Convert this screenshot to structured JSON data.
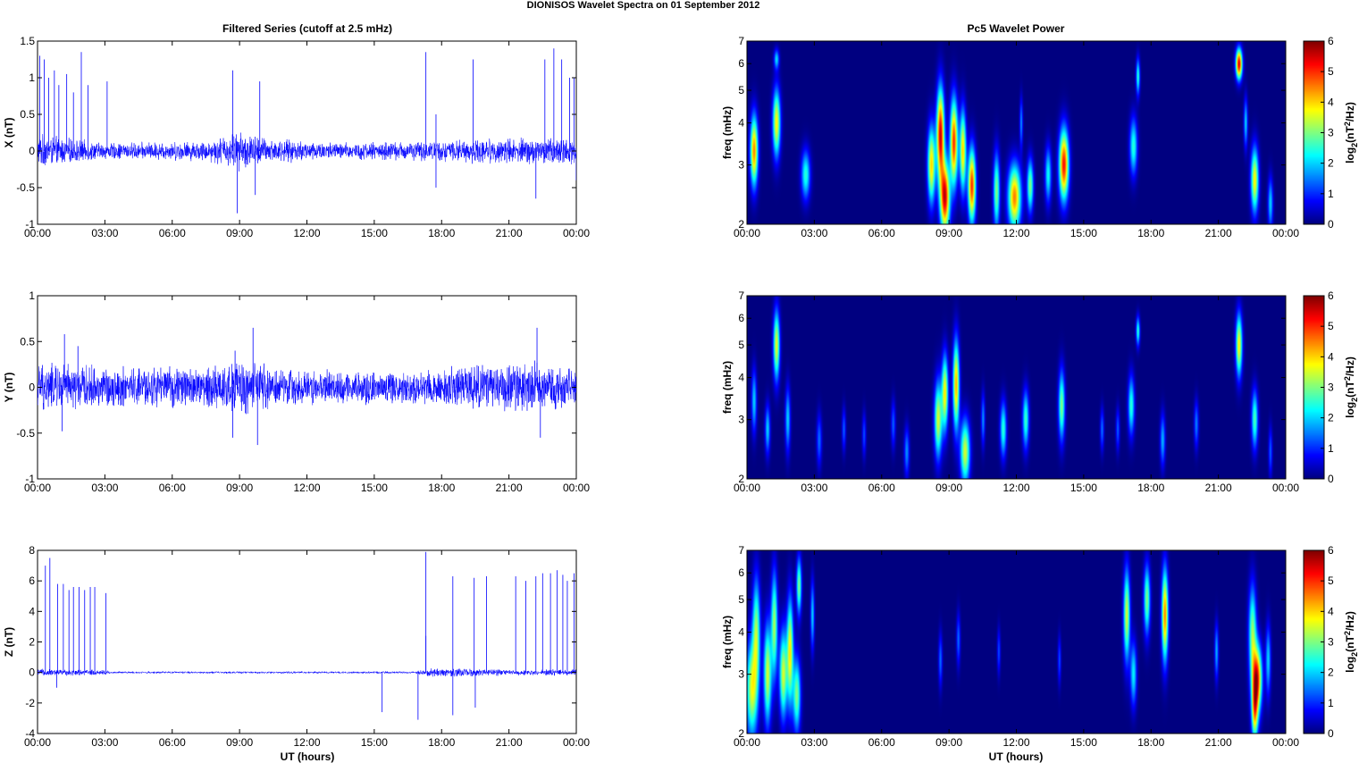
{
  "figure_title": "DIONISOS Wavelet Spectra on 01 September 2012",
  "left_title": "Filtered Series (cutoff at 2.5 mHz)",
  "right_title": "Pc5 Wavelet Power",
  "x_axis_label": "UT (hours)",
  "time_ticks": [
    "00:00",
    "03:00",
    "06:00",
    "09:00",
    "12:00",
    "15:00",
    "18:00",
    "21:00",
    "00:00"
  ],
  "colors": {
    "trace": "#0000ff",
    "background": "#ffffff",
    "axes": "#000000"
  },
  "colorbar": {
    "label_prefix": "log",
    "label_sub": "2",
    "label_mid": "(nT",
    "label_sup": "2",
    "label_end": "/Hz)",
    "ticks": [
      "0",
      "1",
      "2",
      "3",
      "4",
      "5",
      "6"
    ],
    "colormap": "jet",
    "range": [
      0,
      6
    ]
  },
  "chart_data": [
    {
      "type": "line",
      "panel": "X",
      "ylabel": "X (nT)",
      "ylim": [
        -1,
        1.5
      ],
      "yticks": [
        "1.5",
        "1",
        "0.5",
        "0",
        "-0.5",
        "-1"
      ],
      "xlim": [
        "00:00",
        "24:00"
      ],
      "noise_envelope": [
        [
          0,
          0.25
        ],
        [
          3,
          0.12
        ],
        [
          7.5,
          0.15
        ],
        [
          9.0,
          0.3
        ],
        [
          10.5,
          0.18
        ],
        [
          13.5,
          0.13
        ],
        [
          17.5,
          0.15
        ],
        [
          21,
          0.2
        ],
        [
          24,
          0.2
        ]
      ],
      "spikes": [
        [
          0.1,
          1.3
        ],
        [
          0.3,
          1.25
        ],
        [
          0.5,
          1.0
        ],
        [
          0.75,
          1.1
        ],
        [
          0.95,
          0.9
        ],
        [
          1.3,
          1.05
        ],
        [
          1.6,
          0.8
        ],
        [
          1.95,
          1.35
        ],
        [
          2.25,
          0.9
        ],
        [
          3.1,
          0.95
        ],
        [
          8.7,
          1.1
        ],
        [
          9.9,
          0.95
        ],
        [
          17.3,
          1.35
        ],
        [
          17.75,
          0.5
        ],
        [
          19.4,
          1.25
        ],
        [
          22.6,
          1.25
        ],
        [
          23.0,
          1.4
        ],
        [
          23.35,
          1.25
        ],
        [
          23.7,
          1.0
        ],
        [
          23.9,
          1.0
        ]
      ],
      "dips": [
        [
          8.9,
          -0.85
        ],
        [
          9.7,
          -0.6
        ],
        [
          17.75,
          -0.5
        ],
        [
          22.2,
          -0.65
        ],
        [
          24.0,
          -0.4
        ]
      ]
    },
    {
      "type": "line",
      "panel": "Y",
      "ylabel": "Y (nT)",
      "ylim": [
        -1,
        1
      ],
      "yticks": [
        "1",
        "0.5",
        "0",
        "-0.5",
        "-1"
      ],
      "xlim": [
        "00:00",
        "24:00"
      ],
      "noise_envelope": [
        [
          0,
          0.3
        ],
        [
          3,
          0.25
        ],
        [
          7.5,
          0.25
        ],
        [
          9.2,
          0.35
        ],
        [
          11,
          0.22
        ],
        [
          16.5,
          0.2
        ],
        [
          19,
          0.28
        ],
        [
          22.3,
          0.3
        ],
        [
          24,
          0.2
        ]
      ],
      "spikes": [
        [
          1.2,
          0.58
        ],
        [
          9.6,
          0.65
        ],
        [
          22.25,
          0.65
        ],
        [
          1.8,
          0.45
        ],
        [
          8.8,
          0.4
        ]
      ],
      "dips": [
        [
          9.8,
          -0.63
        ],
        [
          8.7,
          -0.55
        ],
        [
          22.4,
          -0.55
        ],
        [
          1.1,
          -0.48
        ]
      ]
    },
    {
      "type": "line",
      "panel": "Z",
      "ylabel": "Z (nT)",
      "ylim": [
        -4,
        8
      ],
      "yticks": [
        "8",
        "6",
        "4",
        "2",
        "0",
        "-2",
        "-4"
      ],
      "xlim": [
        "00:00",
        "24:00"
      ],
      "noise_envelope": [
        [
          0,
          0.25
        ],
        [
          3,
          0.2
        ],
        [
          3.3,
          0.08
        ],
        [
          16.8,
          0.08
        ],
        [
          17.5,
          0.3
        ],
        [
          19.5,
          0.3
        ],
        [
          21,
          0.2
        ],
        [
          24,
          0.25
        ]
      ],
      "spikes": [
        [
          0.35,
          7.0
        ],
        [
          0.55,
          7.5
        ],
        [
          0.9,
          5.8
        ],
        [
          1.15,
          5.8
        ],
        [
          1.4,
          5.4
        ],
        [
          1.6,
          5.6
        ],
        [
          1.85,
          5.6
        ],
        [
          2.1,
          5.4
        ],
        [
          2.35,
          5.6
        ],
        [
          2.55,
          5.6
        ],
        [
          3.05,
          5.2
        ],
        [
          17.3,
          7.9
        ],
        [
          17.3,
          2.4
        ],
        [
          18.5,
          6.3
        ],
        [
          19.45,
          6.2
        ],
        [
          20.0,
          6.3
        ],
        [
          21.3,
          6.3
        ],
        [
          21.75,
          6.0
        ],
        [
          22.2,
          6.3
        ],
        [
          22.5,
          6.5
        ],
        [
          22.85,
          6.5
        ],
        [
          23.15,
          6.7
        ],
        [
          23.4,
          6.4
        ],
        [
          23.6,
          6.0
        ],
        [
          23.9,
          6.5
        ]
      ],
      "dips": [
        [
          15.35,
          -2.6
        ],
        [
          16.95,
          -3.1
        ],
        [
          18.5,
          -2.8
        ],
        [
          19.5,
          -2.3
        ],
        [
          0.85,
          -1.0
        ]
      ]
    },
    {
      "type": "heatmap",
      "panel": "X",
      "ylabel": "freq (mHz)",
      "yscale": "log",
      "ylim": [
        2,
        7
      ],
      "yticks": [
        "7",
        "6",
        "5",
        "4",
        "3",
        "2"
      ],
      "xlim": [
        "00:00",
        "24:00"
      ],
      "clim": [
        0,
        6
      ],
      "blobs": [
        [
          0.3,
          3.3,
          0.12,
          0.6,
          4.5
        ],
        [
          1.3,
          4.0,
          0.12,
          0.7,
          3.8
        ],
        [
          1.3,
          6.2,
          0.08,
          0.3,
          2.0
        ],
        [
          2.6,
          2.8,
          0.14,
          0.35,
          2.5
        ],
        [
          8.2,
          3.0,
          0.12,
          0.6,
          4.0
        ],
        [
          8.6,
          3.7,
          0.12,
          0.9,
          5.5
        ],
        [
          8.8,
          2.4,
          0.15,
          0.45,
          5.5
        ],
        [
          9.2,
          3.5,
          0.12,
          0.8,
          5.0
        ],
        [
          9.6,
          3.3,
          0.1,
          0.7,
          4.0
        ],
        [
          10.0,
          2.6,
          0.12,
          0.5,
          5.0
        ],
        [
          11.1,
          2.5,
          0.1,
          0.5,
          3.0
        ],
        [
          11.9,
          2.4,
          0.2,
          0.4,
          4.5
        ],
        [
          12.6,
          2.6,
          0.1,
          0.35,
          3.0
        ],
        [
          12.2,
          4.0,
          0.05,
          0.5,
          1.6
        ],
        [
          14.1,
          3.0,
          0.15,
          0.55,
          5.2
        ],
        [
          13.4,
          2.8,
          0.1,
          0.4,
          2.3
        ],
        [
          17.2,
          3.4,
          0.12,
          0.5,
          2.5
        ],
        [
          17.4,
          5.5,
          0.06,
          0.5,
          2.5
        ],
        [
          21.9,
          6.0,
          0.1,
          0.45,
          5.5
        ],
        [
          22.2,
          4.0,
          0.06,
          0.5,
          2.0
        ],
        [
          22.6,
          2.7,
          0.12,
          0.45,
          3.8
        ],
        [
          23.3,
          2.3,
          0.08,
          0.3,
          2.0
        ]
      ]
    },
    {
      "type": "heatmap",
      "panel": "Y",
      "ylabel": "freq (mHz)",
      "yscale": "log",
      "ylim": [
        2,
        7
      ],
      "yticks": [
        "7",
        "6",
        "5",
        "4",
        "3",
        "2"
      ],
      "xlim": [
        "00:00",
        "24:00"
      ],
      "clim": [
        0,
        6
      ],
      "blobs": [
        [
          0.3,
          3.4,
          0.08,
          0.55,
          2.0
        ],
        [
          0.9,
          2.8,
          0.08,
          0.35,
          2.0
        ],
        [
          1.3,
          5.0,
          0.1,
          0.9,
          3.6
        ],
        [
          1.8,
          3.0,
          0.08,
          0.5,
          2.0
        ],
        [
          3.2,
          2.6,
          0.08,
          0.35,
          1.4
        ],
        [
          4.3,
          2.8,
          0.06,
          0.3,
          1.3
        ],
        [
          5.2,
          2.7,
          0.06,
          0.3,
          1.2
        ],
        [
          6.5,
          2.9,
          0.07,
          0.35,
          1.3
        ],
        [
          7.1,
          2.4,
          0.08,
          0.3,
          1.6
        ],
        [
          8.5,
          3.0,
          0.12,
          0.6,
          3.5
        ],
        [
          8.8,
          3.6,
          0.1,
          0.7,
          3.8
        ],
        [
          9.3,
          3.8,
          0.1,
          0.9,
          4.2
        ],
        [
          9.7,
          2.4,
          0.15,
          0.4,
          3.5
        ],
        [
          10.5,
          3.0,
          0.06,
          0.4,
          1.6
        ],
        [
          11.4,
          2.8,
          0.1,
          0.4,
          2.5
        ],
        [
          12.4,
          3.0,
          0.1,
          0.45,
          2.6
        ],
        [
          14.0,
          3.3,
          0.1,
          0.6,
          3.0
        ],
        [
          15.8,
          2.8,
          0.06,
          0.3,
          1.4
        ],
        [
          16.5,
          2.8,
          0.06,
          0.3,
          1.3
        ],
        [
          17.1,
          3.3,
          0.1,
          0.5,
          2.5
        ],
        [
          17.4,
          5.5,
          0.06,
          0.4,
          2.5
        ],
        [
          18.5,
          2.6,
          0.08,
          0.35,
          1.8
        ],
        [
          20.0,
          2.9,
          0.07,
          0.35,
          1.5
        ],
        [
          21.9,
          5.0,
          0.1,
          0.8,
          3.8
        ],
        [
          22.6,
          3.0,
          0.1,
          0.45,
          2.7
        ],
        [
          23.3,
          2.4,
          0.06,
          0.3,
          1.3
        ]
      ]
    },
    {
      "type": "heatmap",
      "panel": "Z",
      "ylabel": "freq (mHz)",
      "yscale": "log",
      "ylim": [
        2,
        7
      ],
      "yticks": [
        "7",
        "6",
        "5",
        "4",
        "3",
        "2"
      ],
      "xlim": [
        "00:00",
        "24:00"
      ],
      "clim": [
        0,
        6
      ],
      "blobs": [
        [
          0.2,
          2.7,
          0.18,
          0.7,
          3.5
        ],
        [
          0.4,
          4.0,
          0.12,
          1.2,
          3.0
        ],
        [
          0.9,
          3.0,
          0.12,
          0.8,
          3.5
        ],
        [
          1.2,
          4.2,
          0.1,
          1.2,
          3.2
        ],
        [
          1.6,
          3.0,
          0.12,
          0.7,
          3.5
        ],
        [
          1.9,
          3.5,
          0.1,
          1.0,
          3.8
        ],
        [
          2.2,
          2.6,
          0.12,
          0.5,
          3.0
        ],
        [
          2.3,
          5.5,
          0.08,
          0.8,
          3.0
        ],
        [
          2.9,
          4.5,
          0.06,
          0.8,
          2.0
        ],
        [
          8.6,
          3.3,
          0.06,
          0.45,
          1.4
        ],
        [
          9.4,
          3.8,
          0.06,
          0.5,
          1.4
        ],
        [
          11.2,
          3.5,
          0.05,
          0.4,
          1.2
        ],
        [
          13.9,
          3.3,
          0.05,
          0.4,
          1.2
        ],
        [
          16.9,
          4.5,
          0.1,
          1.1,
          3.5
        ],
        [
          17.2,
          3.0,
          0.1,
          0.5,
          2.2
        ],
        [
          17.8,
          5.0,
          0.1,
          0.9,
          3.0
        ],
        [
          18.6,
          4.5,
          0.1,
          1.1,
          4.5
        ],
        [
          20.9,
          3.5,
          0.06,
          0.5,
          1.8
        ],
        [
          22.5,
          4.0,
          0.12,
          1.0,
          3.0
        ],
        [
          22.7,
          2.9,
          0.15,
          0.5,
          5.2
        ],
        [
          22.6,
          2.3,
          0.1,
          0.35,
          3.5
        ],
        [
          23.2,
          3.3,
          0.08,
          0.6,
          2.0
        ]
      ]
    }
  ]
}
